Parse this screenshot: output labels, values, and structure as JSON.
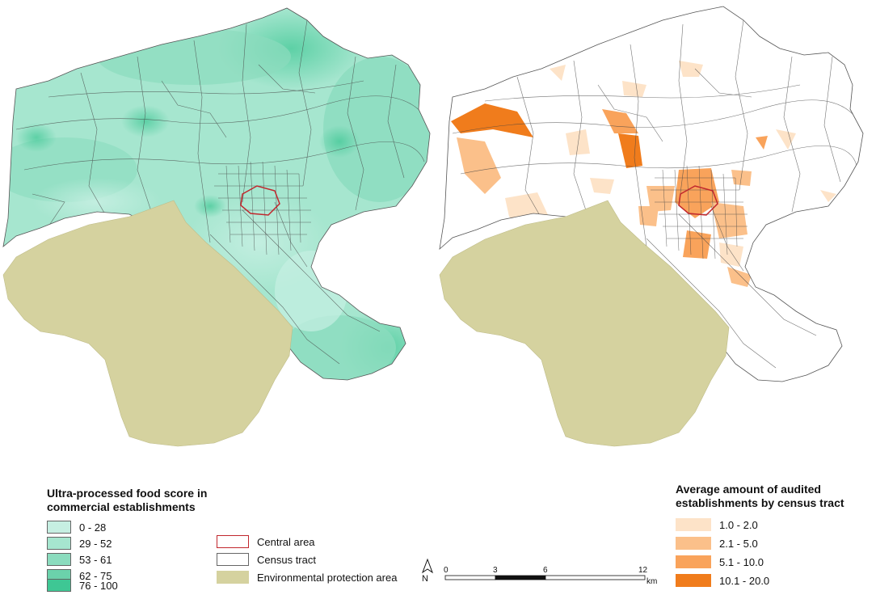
{
  "colors": {
    "protection_area": "#d5d29f",
    "tract_line": "#444444",
    "central_outline": "#c1272d",
    "green_classes": [
      "#c6efe2",
      "#a6e6cf",
      "#8bdcbe",
      "#6bd2ab",
      "#3ec794"
    ],
    "orange_classes": [
      "#fde3c8",
      "#fbc08a",
      "#f9a35b",
      "#f07c1c"
    ]
  },
  "left_legend": {
    "title_line1": "Ultra-processed food score in",
    "title_line2": "commercial establishments",
    "items": [
      "0 - 28",
      "29 - 52",
      "53 - 61",
      "62 - 75",
      "76 - 100"
    ]
  },
  "center_legend": {
    "central_area": "Central area",
    "census_tract": "Census tract",
    "protection_area": "Environmental protection area"
  },
  "right_legend": {
    "title_line1": "Average amount of audited",
    "title_line2": "establishments by census tract",
    "items": [
      "1.0 - 2.0",
      "2.1 - 5.0",
      "5.1 - 10.0",
      "10.1 - 20.0"
    ]
  },
  "scale_bar": {
    "north_label": "N",
    "ticks": [
      "0",
      "3",
      "6",
      "12"
    ],
    "unit": "km"
  }
}
